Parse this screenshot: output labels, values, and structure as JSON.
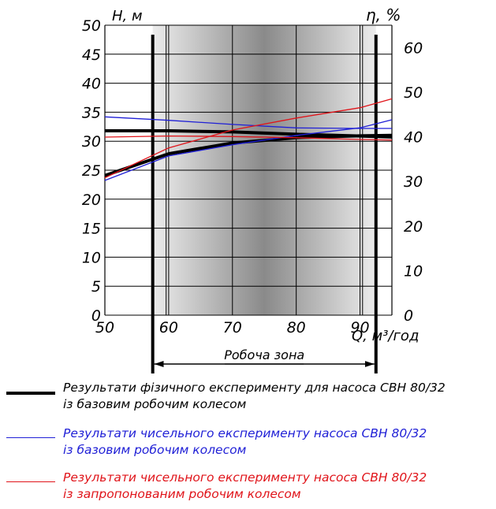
{
  "chart_data": {
    "type": "line",
    "x_axis": {
      "label": "Q, м³/год",
      "ticks": [
        "50",
        "60",
        "70",
        "80",
        "90"
      ],
      "range": [
        50,
        95
      ]
    },
    "y_left": {
      "label": "H, м",
      "ticks": [
        "0",
        "5",
        "10",
        "15",
        "20",
        "25",
        "30",
        "35",
        "40",
        "45",
        "50"
      ],
      "range": [
        0,
        50
      ]
    },
    "y_right": {
      "label": "η, %",
      "ticks": [
        "0",
        "10",
        "20",
        "30",
        "40",
        "50",
        "60"
      ],
      "range": [
        0,
        65
      ]
    },
    "working_zone": {
      "label": "Робоча зона",
      "from": 57.5,
      "to": 92.5
    },
    "grid": true,
    "series": [
      {
        "name": "Результати фізичного експерименту для насоса СВН 80/32 із базовим робочим колесом",
        "color": "#000000",
        "width": 4,
        "head": {
          "x": [
            50,
            60,
            70,
            80,
            90,
            95
          ],
          "y": [
            31.8,
            31.8,
            31.6,
            31.2,
            30.9,
            30.7
          ]
        },
        "efficiency": {
          "x": [
            50,
            60,
            70,
            80,
            90,
            95
          ],
          "y": [
            31.3,
            36.2,
            38.6,
            39.8,
            40.2,
            40.3
          ]
        }
      },
      {
        "name": "Результати чисельного експерименту насоса СВН 80/32 із базовим робочим колесом",
        "color": "#1f1fd6",
        "width": 1.3,
        "head": {
          "x": [
            50,
            60,
            70,
            80,
            90,
            95
          ],
          "y": [
            34.2,
            33.6,
            32.9,
            32.3,
            32.2,
            32.2
          ]
        },
        "efficiency": {
          "x": [
            50,
            60,
            70,
            80,
            90,
            95
          ],
          "y": [
            30.2,
            35.7,
            38.2,
            40.3,
            42.0,
            43.8
          ]
        }
      },
      {
        "name": "Результати чисельного експерименту насоса СВН 80/32 із запропонованим робочим колесом",
        "color": "#e0141a",
        "width": 1.3,
        "head": {
          "x": [
            50,
            60,
            70,
            80,
            90,
            95
          ],
          "y": [
            30.7,
            30.9,
            30.8,
            30.6,
            30.3,
            30.2
          ]
        },
        "efficiency": {
          "x": [
            50,
            60,
            70,
            80,
            90,
            95
          ],
          "y": [
            30.8,
            37.5,
            41.5,
            44.2,
            46.5,
            48.5
          ]
        }
      }
    ],
    "legend": [
      {
        "line1": "Результати фізичного експерименту для насоса СВН 80/32",
        "line2": "із базовим робочим колесом",
        "color": "#000000"
      },
      {
        "line1": "Результати чисельного експерименту насоса СВН 80/32",
        "line2": "із базовим робочим колесом",
        "color": "#1f1fd6"
      },
      {
        "line1": "Результати чисельного експерименту насоса СВН 80/32",
        "line2": "із запропонованим робочим колесом",
        "color": "#e0141a"
      }
    ]
  }
}
